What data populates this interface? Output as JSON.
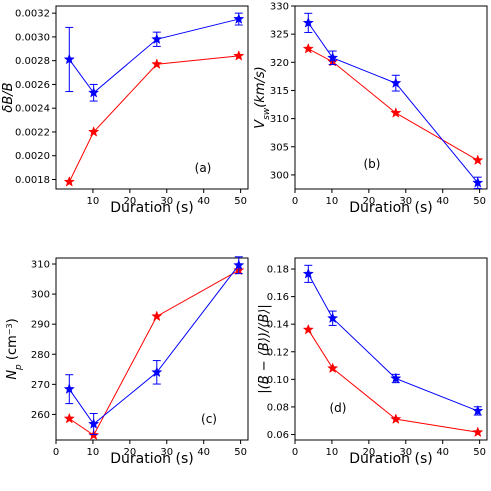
{
  "chart_data": [
    {
      "type": "line",
      "annotation": "(a)",
      "xlabel": "Duration (s)",
      "ylabel": "δB/B",
      "xlim": [
        0,
        52
      ],
      "ylim": [
        0.00172,
        0.00326
      ],
      "xticks": [
        10,
        20,
        30,
        40,
        50
      ],
      "yticks": [
        0.0018,
        0.002,
        0.0022,
        0.0024,
        0.0026,
        0.0028,
        0.003,
        0.0032
      ],
      "ytick_labels": [
        "0.0018",
        "0.0020",
        "0.0022",
        "0.0024",
        "0.0026",
        "0.0028",
        "0.0030",
        "0.0032"
      ],
      "x": [
        3.6,
        10.2,
        27.3,
        49.5
      ],
      "series": [
        {
          "color": "#0000ff",
          "values": [
            0.00281,
            0.00253,
            0.00298,
            0.00315
          ],
          "errors": [
            0.00027,
            7e-05,
            6e-05,
            5e-05
          ]
        },
        {
          "color": "#ff0000",
          "values": [
            0.00178,
            0.0022,
            0.00277,
            0.00284
          ]
        }
      ]
    },
    {
      "type": "line",
      "annotation": "(b)",
      "xlabel": "Duration (s)",
      "ylabel": "V_sw(km/s)",
      "xlim": [
        0,
        52
      ],
      "ylim": [
        297.5,
        330
      ],
      "xticks": [
        0,
        10,
        20,
        30,
        40,
        50
      ],
      "yticks": [
        300,
        305,
        310,
        315,
        320,
        325,
        330
      ],
      "ytick_labels": [
        "300",
        "305",
        "310",
        "315",
        "320",
        "325",
        "330"
      ],
      "x": [
        3.6,
        10.2,
        27.3,
        49.5
      ],
      "series": [
        {
          "color": "#0000ff",
          "values": [
            327.0,
            320.8,
            316.3,
            298.6
          ],
          "errors": [
            1.7,
            1.2,
            1.4,
            1.0
          ]
        },
        {
          "color": "#ff0000",
          "values": [
            322.4,
            320.1,
            311.0,
            302.6
          ]
        }
      ]
    },
    {
      "type": "line",
      "annotation": "(c)",
      "xlabel": "Duration (s)",
      "ylabel": "N_p (cm^-3)",
      "xlim": [
        0,
        52
      ],
      "ylim": [
        251.5,
        312
      ],
      "xticks": [
        0,
        10,
        20,
        30,
        40,
        50
      ],
      "yticks": [
        260,
        270,
        280,
        290,
        300,
        310
      ],
      "ytick_labels": [
        "260",
        "270",
        "280",
        "290",
        "300",
        "310"
      ],
      "x": [
        3.6,
        10.2,
        27.3,
        49.5
      ],
      "series": [
        {
          "color": "#0000ff",
          "values": [
            268.4,
            256.8,
            274.0,
            309.6
          ],
          "errors": [
            4.8,
            3.5,
            3.9,
            2.8
          ]
        },
        {
          "color": "#ff0000",
          "values": [
            258.6,
            253.1,
            292.6,
            307.9
          ]
        }
      ]
    },
    {
      "type": "line",
      "annotation": "(d)",
      "xlabel": "Duration (s)",
      "ylabel": "|(B − ⟨B⟩)/⟨B⟩|",
      "xlim": [
        0,
        52
      ],
      "ylim": [
        0.056,
        0.188
      ],
      "xticks": [
        0,
        10,
        20,
        30,
        40,
        50
      ],
      "yticks": [
        0.06,
        0.08,
        0.1,
        0.12,
        0.14,
        0.16,
        0.18
      ],
      "ytick_labels": [
        "0.06",
        "0.08",
        "0.10",
        "0.12",
        "0.14",
        "0.16",
        "0.18"
      ],
      "x": [
        3.6,
        10.2,
        27.3,
        49.5
      ],
      "series": [
        {
          "color": "#0000ff",
          "values": [
            0.1765,
            0.1443,
            0.1006,
            0.0771
          ],
          "errors": [
            0.0062,
            0.0052,
            0.003,
            0.003
          ]
        },
        {
          "color": "#ff0000",
          "values": [
            0.136,
            0.108,
            0.0711,
            0.0616
          ]
        }
      ]
    }
  ]
}
